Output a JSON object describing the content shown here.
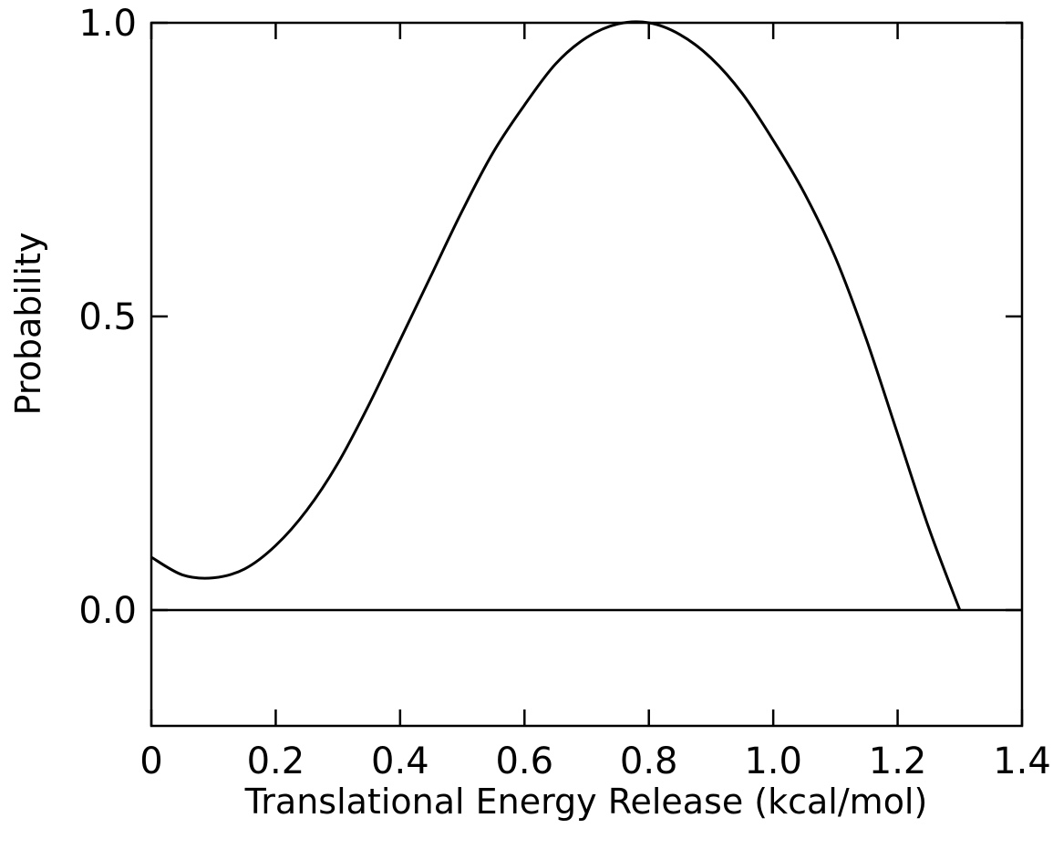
{
  "chart_data": {
    "type": "line",
    "title": "",
    "xlabel": "Translational Energy Release (kcal/mol)",
    "ylabel": "Probability",
    "xlim": [
      0,
      1.4
    ],
    "ylim": [
      -0.2,
      1.0
    ],
    "x_ticks": [
      0,
      0.2,
      0.4,
      0.6,
      0.8,
      1.0,
      1.2,
      1.4
    ],
    "x_tick_labels": [
      "0",
      "0.2",
      "0.4",
      "0.6",
      "0.8",
      "1.0",
      "1.2",
      "1.4"
    ],
    "y_ticks": [
      0.0,
      0.5,
      1.0
    ],
    "y_tick_labels": [
      "0.0",
      "0.5",
      "1.0"
    ],
    "grid": false,
    "reference_line_y": 0.0,
    "series": [
      {
        "x": [
          0.0,
          0.05,
          0.1,
          0.15,
          0.2,
          0.25,
          0.3,
          0.35,
          0.4,
          0.45,
          0.5,
          0.55,
          0.6,
          0.65,
          0.7,
          0.75,
          0.8,
          0.85,
          0.9,
          0.95,
          1.0,
          1.05,
          1.1,
          1.15,
          1.2,
          1.25,
          1.3
        ],
        "values": [
          0.09,
          0.06,
          0.055,
          0.07,
          0.11,
          0.17,
          0.25,
          0.35,
          0.46,
          0.57,
          0.68,
          0.78,
          0.86,
          0.93,
          0.975,
          0.998,
          1.0,
          0.98,
          0.94,
          0.88,
          0.8,
          0.71,
          0.6,
          0.46,
          0.3,
          0.14,
          0.0
        ]
      }
    ]
  }
}
